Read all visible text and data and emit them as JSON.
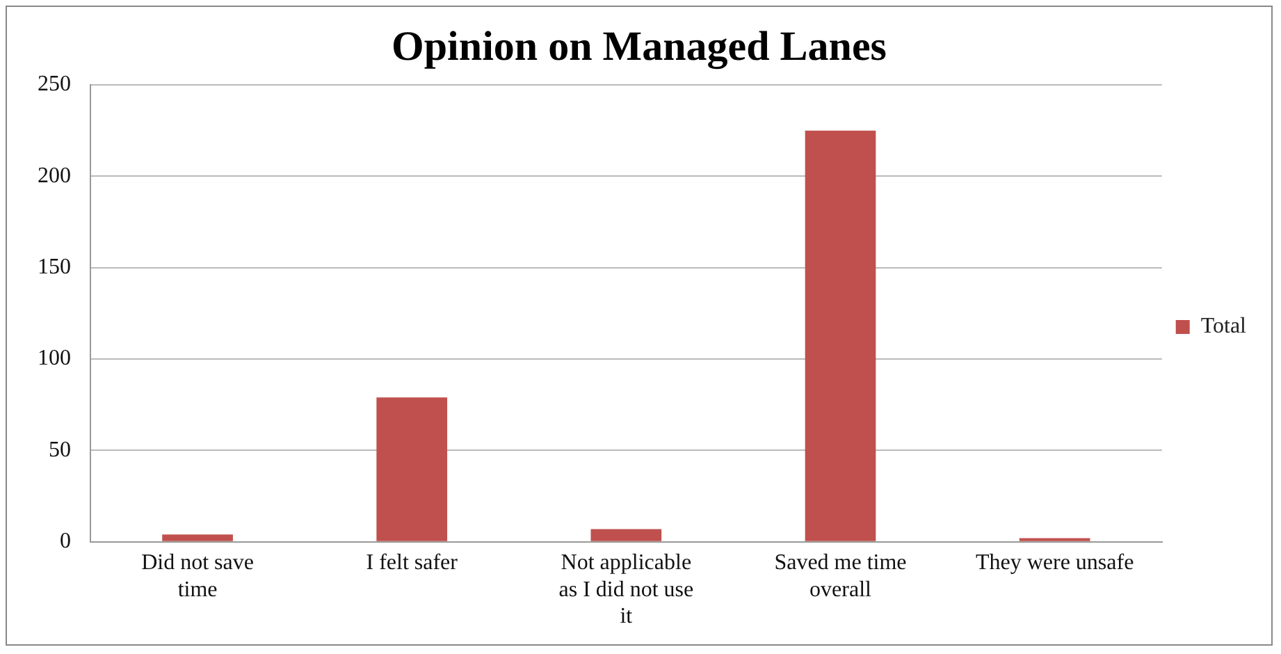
{
  "chart_data": {
    "type": "bar",
    "title": "Opinion on Managed Lanes",
    "categories": [
      "Did not save time",
      "I felt safer",
      "Not applicable as I did not use it",
      "Saved me time overall",
      "They were unsafe"
    ],
    "series": [
      {
        "name": "Total",
        "color": "#c0504d",
        "values": [
          4,
          79,
          7,
          225,
          2
        ]
      }
    ],
    "ylim": [
      0,
      250
    ],
    "yticks": [
      0,
      50,
      100,
      150,
      200,
      250
    ],
    "grid": "y",
    "legend": "right"
  }
}
